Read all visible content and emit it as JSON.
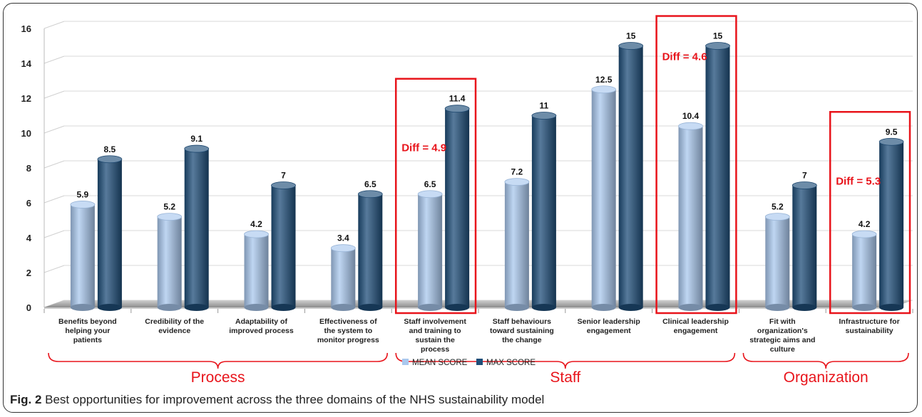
{
  "chart_data": {
    "type": "bar",
    "categories": [
      "Benefits beyond helping your patients",
      "Credibility of the evidence",
      "Adaptability of improved process",
      "Effectiveness of the system to monitor progress",
      "Staff involvement and training to sustain the process",
      "Staff behaviours toward sustaining the change",
      "Senior leadership engagement",
      "Clinical leadership engagement",
      "Fit with organization's strategic aims and culture",
      "Infrastructure for sustainability"
    ],
    "category_lines": [
      [
        "Benefits beyond",
        "helping your",
        "patients"
      ],
      [
        "Credibility of the",
        "evidence"
      ],
      [
        "Adaptability of",
        "improved process"
      ],
      [
        "Effectiveness of",
        "the system to",
        "monitor progress"
      ],
      [
        "Staff involvement",
        "and training to",
        "sustain the",
        "process"
      ],
      [
        "Staff behaviours",
        "toward sustaining",
        "the change"
      ],
      [
        "Senior leadership",
        "engagement"
      ],
      [
        "Clinical leadership",
        "engagement"
      ],
      [
        "Fit with",
        "organization's",
        "strategic aims and",
        "culture"
      ],
      [
        "Infrastructure for",
        "sustainability"
      ]
    ],
    "series": [
      {
        "name": "MEAN SCORE",
        "color": "#a9c8ee",
        "values": [
          5.9,
          5.2,
          4.2,
          3.4,
          6.5,
          7.2,
          12.5,
          10.4,
          5.2,
          4.2
        ]
      },
      {
        "name": "MAX SCORE",
        "color": "#1f4e79",
        "values": [
          8.5,
          9.1,
          7,
          6.5,
          11.4,
          11,
          15,
          15,
          7,
          9.5
        ]
      }
    ],
    "value_labels": [
      [
        "5.9",
        "5.2",
        "4.2",
        "3.4",
        "6.5",
        "7.2",
        "12.5",
        "10.4",
        "5.2",
        "4.2"
      ],
      [
        "8.5",
        "9.1",
        "7",
        "6.5",
        "11.4",
        "11",
        "15",
        "15",
        "7",
        "9.5"
      ]
    ],
    "ylim": [
      0,
      16
    ],
    "yticks": [
      "0",
      "2",
      "4",
      "6",
      "8",
      "10",
      "12",
      "14",
      "16"
    ],
    "grid": true,
    "legend_position": "bottom-center",
    "highlights": [
      {
        "category_index": 4,
        "label": "Diff = 4.9"
      },
      {
        "category_index": 7,
        "label": "Diff = 4.6"
      },
      {
        "category_index": 9,
        "label": "Diff = 5.3"
      }
    ],
    "domains": [
      {
        "label": "Process",
        "from": 0,
        "to": 3
      },
      {
        "label": "Staff",
        "from": 4,
        "to": 7
      },
      {
        "label": "Organization",
        "from": 8,
        "to": 9
      }
    ]
  },
  "caption": {
    "prefix": "Fig. 2",
    "text": " Best opportunities for improvement across the three domains of the NHS sustainability model"
  },
  "colors": {
    "highlight": "#e8141b",
    "mean": "#a9c8ee",
    "max": "#1f4e79"
  }
}
